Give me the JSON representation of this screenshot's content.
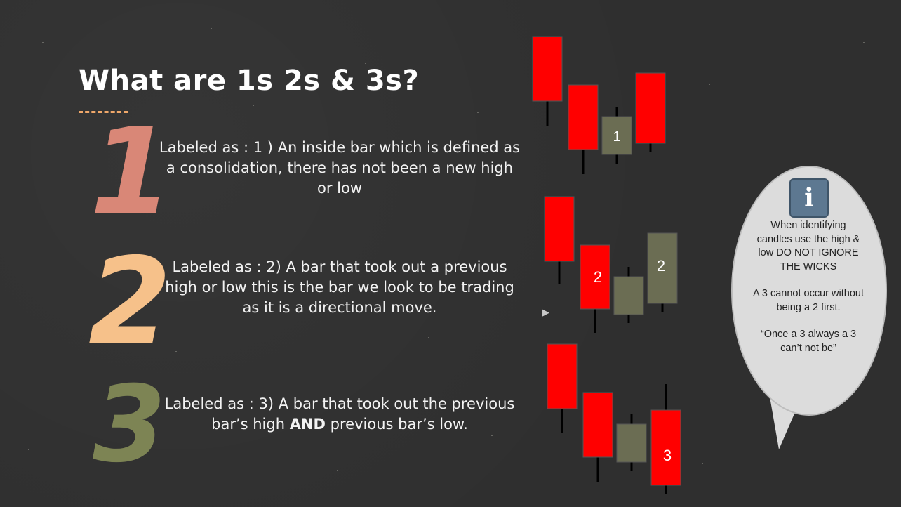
{
  "title": "What are 1s 2s & 3s?",
  "numerals": {
    "one": "1",
    "two": "2",
    "three": "3"
  },
  "descriptions": {
    "one": "Labeled as : 1 ) An inside bar which is defined as a consolidation, there has not been a new high or low",
    "two": "Labeled as : 2) A bar that took out a previous high or low this is the bar we look to be trading as it is a directional move.",
    "three_before": "Labeled as : 3) A bar that took out the previous bar’s high ",
    "three_bold": "AND",
    "three_after": " previous bar’s low."
  },
  "candle_labels": {
    "group1": "1",
    "group2_a": "2",
    "group2_b": "2",
    "group3": "3"
  },
  "bubble": {
    "icon": "info-icon",
    "tip1": "When identifying candles use the high & low DO NOT IGNORE THE WICKS",
    "tip2": "A 3 cannot occur without being a 2 first.",
    "tip3": "“Once a 3 always a 3 can’t not be”"
  },
  "colors": {
    "red": "#ff0000",
    "olive": "#6b6d53",
    "peach": "#f6c18a",
    "salmon": "#d98777",
    "green": "#7d8454"
  }
}
